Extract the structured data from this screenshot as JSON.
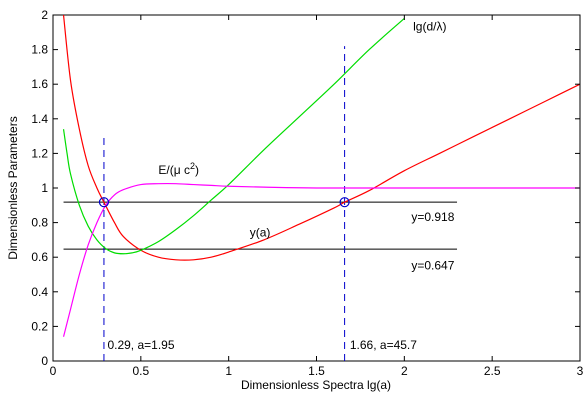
{
  "chart_data": {
    "type": "line",
    "title": "",
    "xlabel": "Dimensionless Spectra lg(a)",
    "ylabel": "Dimensionless Parameters",
    "xlim": [
      0,
      3
    ],
    "ylim": [
      0,
      2
    ],
    "xticks": [
      0,
      0.5,
      1,
      1.5,
      2,
      2.5,
      3
    ],
    "yticks": [
      0,
      0.2,
      0.4,
      0.6,
      0.8,
      1,
      1.2,
      1.4,
      1.6,
      1.8,
      2
    ],
    "xtick_labels": [
      "0",
      "0.5",
      "1",
      "1.5",
      "2",
      "2.5",
      "3"
    ],
    "ytick_labels": [
      "0",
      "0.2",
      "0.4",
      "0.6",
      "0.8",
      "1",
      "1.2",
      "1.4",
      "1.6",
      "1.8",
      "2"
    ],
    "grid": false,
    "legend": "none",
    "series": [
      {
        "label": "y(a)",
        "color": "#ff0000",
        "x": [
          0.06,
          0.1,
          0.15,
          0.2,
          0.25,
          0.29,
          0.35,
          0.4,
          0.5,
          0.6,
          0.7,
          0.8,
          0.9,
          1.0,
          1.2,
          1.4,
          1.6,
          1.66,
          1.8,
          2.0,
          2.2,
          2.4,
          2.6,
          2.8,
          3.0
        ],
        "y": [
          2.0,
          1.62,
          1.34,
          1.13,
          1.0,
          0.918,
          0.8,
          0.72,
          0.64,
          0.6,
          0.585,
          0.585,
          0.6,
          0.63,
          0.7,
          0.79,
          0.885,
          0.918,
          0.985,
          1.1,
          1.2,
          1.3,
          1.4,
          1.5,
          1.6
        ]
      },
      {
        "label": "lg(d/λ)",
        "color": "#00dd00",
        "x": [
          0.06,
          0.08,
          0.1,
          0.15,
          0.2,
          0.25,
          0.3,
          0.35,
          0.4,
          0.45,
          0.5,
          0.6,
          0.7,
          0.8,
          0.9,
          1.0,
          1.2,
          1.4,
          1.6,
          1.8,
          2.0
        ],
        "y": [
          1.34,
          1.2,
          1.08,
          0.9,
          0.78,
          0.7,
          0.65,
          0.625,
          0.62,
          0.625,
          0.64,
          0.69,
          0.76,
          0.84,
          0.93,
          1.02,
          1.22,
          1.41,
          1.6,
          1.8,
          1.98
        ]
      },
      {
        "label": "E/(μ c²)",
        "color": "#ff00ff",
        "x": [
          0.06,
          0.1,
          0.15,
          0.2,
          0.25,
          0.3,
          0.35,
          0.4,
          0.5,
          0.6,
          0.7,
          0.8,
          0.9,
          1.0,
          1.2,
          1.5,
          2.0,
          2.5,
          3.0
        ],
        "y": [
          0.14,
          0.3,
          0.5,
          0.67,
          0.8,
          0.9,
          0.96,
          0.99,
          1.02,
          1.025,
          1.025,
          1.02,
          1.015,
          1.01,
          1.005,
          1.0,
          1.0,
          1.0,
          1.0
        ]
      }
    ],
    "hlines": [
      {
        "y": 0.918,
        "x": [
          0.06,
          2.3
        ],
        "color": "#000000",
        "label": "y=0.918"
      },
      {
        "y": 0.647,
        "x": [
          0.06,
          2.3
        ],
        "color": "#000000",
        "label": "y=0.647"
      }
    ],
    "vlines": [
      {
        "x": 0.29,
        "y": [
          0,
          1.3
        ],
        "color": "#0000cc",
        "style": "dashed",
        "label": "0.29, a=1.95"
      },
      {
        "x": 1.66,
        "y": [
          0,
          1.82
        ],
        "color": "#0000cc",
        "style": "dashed",
        "label": "1.66, a=45.7"
      }
    ],
    "markers": [
      {
        "x": 0.29,
        "y": 0.918,
        "color": "#0000cc",
        "shape": "circle"
      },
      {
        "x": 1.66,
        "y": 0.918,
        "color": "#0000cc",
        "shape": "circle"
      }
    ],
    "annotations": [
      {
        "text": "lg(d/λ)",
        "x": 2.05,
        "y": 1.91,
        "anchor": "start"
      },
      {
        "text_main": "E/(μ c",
        "text_sup": "2",
        "text_tail": ")",
        "x": 0.6,
        "y": 1.08,
        "anchor": "start"
      },
      {
        "text": "y(a)",
        "x": 1.12,
        "y": 0.72,
        "anchor": "start"
      },
      {
        "text": "y=0.918",
        "x": 2.04,
        "y": 0.81,
        "anchor": "start"
      },
      {
        "text": "y=0.647",
        "x": 2.04,
        "y": 0.53,
        "anchor": "start"
      },
      {
        "text": "0.29, a=1.95",
        "x": 0.31,
        "y": 0.07,
        "anchor": "start"
      },
      {
        "text": "1.66, a=45.7",
        "x": 1.69,
        "y": 0.07,
        "anchor": "start"
      }
    ]
  }
}
